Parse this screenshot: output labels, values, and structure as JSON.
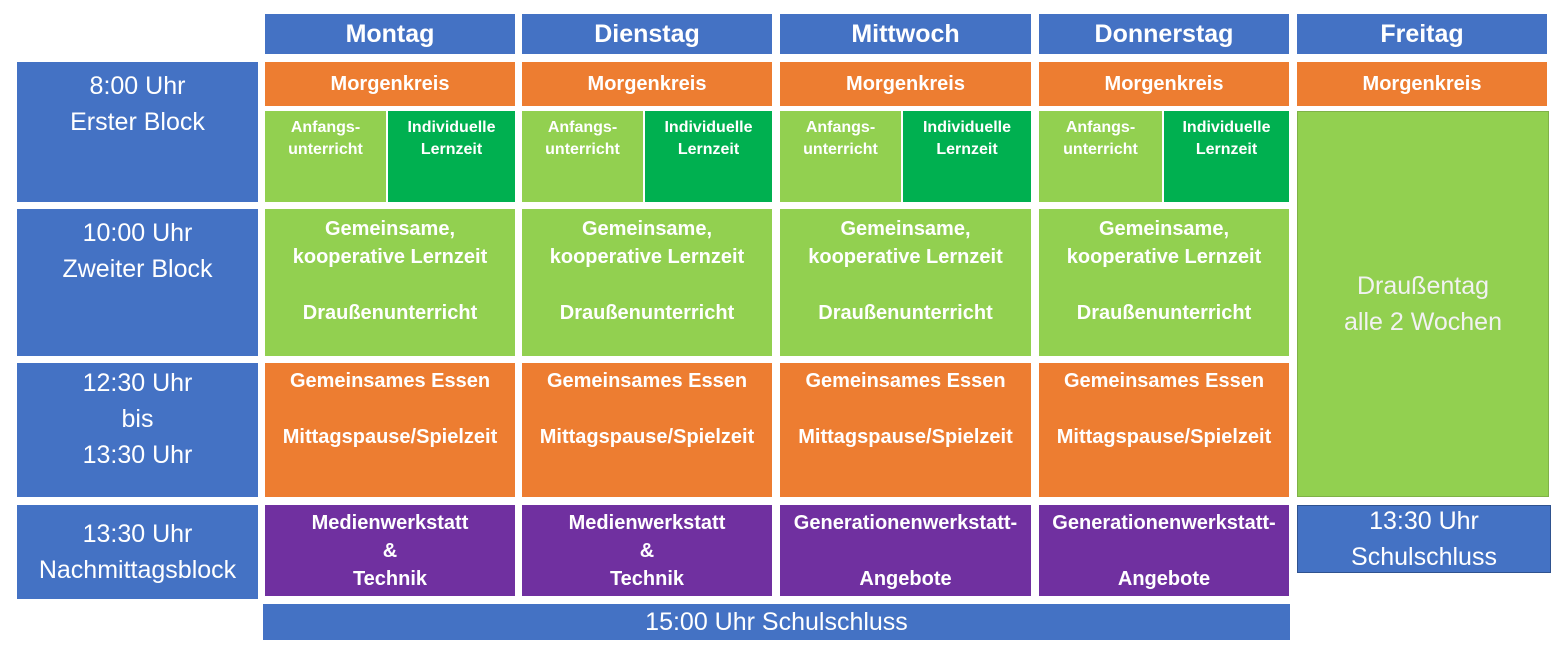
{
  "days": [
    {
      "name": "Montag",
      "morning": "Morgenkreis",
      "start_a": [
        "Anfangs-",
        "unterricht"
      ],
      "start_b": [
        "Individuelle",
        "Lernzeit"
      ],
      "second_a": [
        "Gemeinsame,",
        "kooperative Lernzeit"
      ],
      "second_b": "Draußenunterricht",
      "lunch_a": "Gemeinsames Essen",
      "lunch_b": "Mittagspause/Spielzeit",
      "afternoon": [
        "Medienwerkstatt",
        "&",
        "Technik"
      ]
    },
    {
      "name": "Dienstag",
      "morning": "Morgenkreis",
      "start_a": [
        "Anfangs-",
        "unterricht"
      ],
      "start_b": [
        "Individuelle",
        "Lernzeit"
      ],
      "second_a": [
        "Gemeinsame,",
        "kooperative Lernzeit"
      ],
      "second_b": "Draußenunterricht",
      "lunch_a": "Gemeinsames Essen",
      "lunch_b": "Mittagspause/Spielzeit",
      "afternoon": [
        "Medienwerkstatt",
        "&",
        "Technik"
      ]
    },
    {
      "name": "Mittwoch",
      "morning": "Morgenkreis",
      "start_a": [
        "Anfangs-",
        "unterricht"
      ],
      "start_b": [
        "Individuelle",
        "Lernzeit"
      ],
      "second_a": [
        "Gemeinsame,",
        "kooperative Lernzeit"
      ],
      "second_b": "Draußenunterricht",
      "lunch_a": "Gemeinsames Essen",
      "lunch_b": "Mittagspause/Spielzeit",
      "afternoon": [
        "Generationenwerkstatt-",
        "",
        "Angebote"
      ]
    },
    {
      "name": "Donnerstag",
      "morning": "Morgenkreis",
      "start_a": [
        "Anfangs-",
        "unterricht"
      ],
      "start_b": [
        "Individuelle",
        "Lernzeit"
      ],
      "second_a": [
        "Gemeinsame,",
        "kooperative Lernzeit"
      ],
      "second_b": "Draußenunterricht",
      "lunch_a": "Gemeinsames Essen",
      "lunch_b": "Mittagspause/Spielzeit",
      "afternoon": [
        "Generationenwerkstatt-",
        "",
        "Angebote"
      ]
    }
  ],
  "friday": {
    "name": "Freitag",
    "morning": "Morgenkreis",
    "outdoor": [
      "Draußentag",
      "alle 2 Wochen"
    ],
    "end": [
      "13:30 Uhr",
      "Schulschluss"
    ]
  },
  "time_blocks": [
    [
      "8:00 Uhr",
      "Erster Block"
    ],
    [
      "10:00 Uhr",
      "Zweiter Block"
    ],
    [
      "12:30 Uhr",
      "bis",
      "13:30 Uhr"
    ],
    [
      "13:30 Uhr",
      "Nachmittagsblock"
    ]
  ],
  "footer": "15:00 Uhr Schulschluss",
  "colors": {
    "blue": "#4472c4",
    "orange": "#ed7d31",
    "light_green": "#92d050",
    "dark_green": "#00b050",
    "purple": "#7030a0"
  }
}
